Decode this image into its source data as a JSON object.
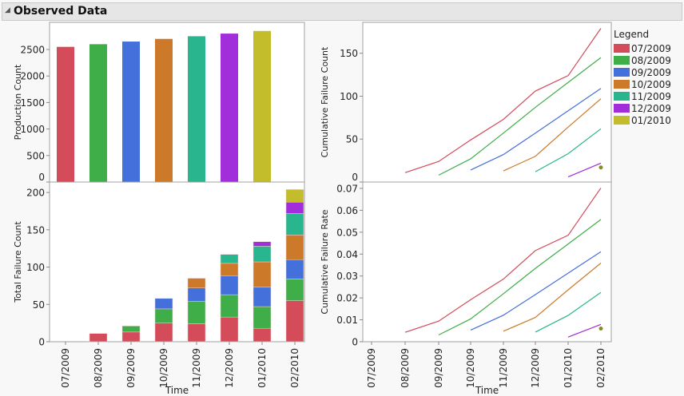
{
  "header": {
    "title": "Observed Data",
    "collapse_icon": "disclosure-triangle-icon"
  },
  "legend": {
    "title": "Legend"
  },
  "colors": [
    "#d44b5a",
    "#3fae49",
    "#4470dc",
    "#cc7a29",
    "#29b58e",
    "#a22ddb",
    "#c3bd2b"
  ],
  "chart_data": [
    {
      "type": "bar",
      "ylabel": "Production Count",
      "ylim": [
        0,
        3012
      ],
      "yticks": [
        0,
        500,
        1000,
        1500,
        2000,
        2500
      ],
      "categories": [
        "07/2009",
        "08/2009",
        "09/2009",
        "10/2009",
        "11/2009",
        "12/2009",
        "01/2010"
      ],
      "values": [
        2550,
        2600,
        2650,
        2700,
        2750,
        2800,
        2850
      ]
    },
    {
      "type": "bar",
      "stacked": true,
      "xlabel": "Time",
      "ylabel": "Total Failure Count",
      "ylim": [
        0,
        214
      ],
      "yticks": [
        0,
        50,
        100,
        150,
        200
      ],
      "categories": [
        "07/2009",
        "08/2009",
        "09/2009",
        "10/2009",
        "11/2009",
        "12/2009",
        "01/2010",
        "02/2010"
      ],
      "series": [
        {
          "name": "07/2009",
          "values": [
            0,
            11,
            13,
            25,
            24,
            33,
            18,
            55
          ]
        },
        {
          "name": "08/2009",
          "values": [
            0,
            0,
            8,
            19,
            30,
            30,
            29,
            29
          ]
        },
        {
          "name": "09/2009",
          "values": [
            0,
            0,
            0,
            14,
            18,
            25,
            26,
            26
          ]
        },
        {
          "name": "10/2009",
          "values": [
            0,
            0,
            0,
            0,
            13,
            17,
            34,
            33
          ]
        },
        {
          "name": "11/2009",
          "values": [
            0,
            0,
            0,
            0,
            0,
            12,
            21,
            29
          ]
        },
        {
          "name": "12/2009",
          "values": [
            0,
            0,
            0,
            0,
            0,
            0,
            6,
            15
          ]
        },
        {
          "name": "01/2010",
          "values": [
            0,
            0,
            0,
            0,
            0,
            0,
            0,
            17
          ]
        }
      ]
    },
    {
      "type": "line",
      "ylabel": "Cumulative Failure Count",
      "ylim": [
        0,
        186
      ],
      "yticks": [
        0,
        50,
        100,
        150
      ],
      "legend": "right",
      "categories": [
        "07/2009",
        "08/2009",
        "09/2009",
        "10/2009",
        "11/2009",
        "12/2009",
        "01/2010",
        "02/2010"
      ],
      "series": [
        {
          "name": "07/2009",
          "values": [
            null,
            11,
            24,
            49,
            73,
            106,
            124,
            179
          ]
        },
        {
          "name": "08/2009",
          "values": [
            null,
            null,
            8,
            27,
            57,
            87,
            116,
            145
          ]
        },
        {
          "name": "09/2009",
          "values": [
            null,
            null,
            null,
            14,
            32,
            57,
            83,
            109
          ]
        },
        {
          "name": "10/2009",
          "values": [
            null,
            null,
            null,
            null,
            13,
            30,
            64,
            97
          ]
        },
        {
          "name": "11/2009",
          "values": [
            null,
            null,
            null,
            null,
            null,
            12,
            33,
            62
          ]
        },
        {
          "name": "12/2009",
          "values": [
            null,
            null,
            null,
            null,
            null,
            null,
            6,
            22
          ]
        },
        {
          "name": "01/2010",
          "values": [
            null,
            null,
            null,
            null,
            null,
            null,
            null,
            17
          ]
        }
      ]
    },
    {
      "type": "line",
      "xlabel": "Time",
      "ylabel": "Cumulative Failure Rate",
      "ylim": [
        0,
        0.0729
      ],
      "yticks": [
        0,
        0.01,
        0.02,
        0.03,
        0.04,
        0.05,
        0.06,
        0.07
      ],
      "categories": [
        "07/2009",
        "08/2009",
        "09/2009",
        "10/2009",
        "11/2009",
        "12/2009",
        "01/2010",
        "02/2010"
      ],
      "series": [
        {
          "name": "07/2009",
          "values": [
            null,
            0.0043,
            0.0094,
            0.0192,
            0.0286,
            0.0416,
            0.0486,
            0.0702
          ]
        },
        {
          "name": "08/2009",
          "values": [
            null,
            null,
            0.0031,
            0.0104,
            0.0219,
            0.0335,
            0.0446,
            0.0558
          ]
        },
        {
          "name": "09/2009",
          "values": [
            null,
            null,
            null,
            0.0053,
            0.0121,
            0.0215,
            0.0313,
            0.0411
          ]
        },
        {
          "name": "10/2009",
          "values": [
            null,
            null,
            null,
            null,
            0.0048,
            0.0111,
            0.0237,
            0.0359
          ]
        },
        {
          "name": "11/2009",
          "values": [
            null,
            null,
            null,
            null,
            null,
            0.0044,
            0.012,
            0.0225
          ]
        },
        {
          "name": "12/2009",
          "values": [
            null,
            null,
            null,
            null,
            null,
            null,
            0.0021,
            0.0079
          ]
        },
        {
          "name": "01/2010",
          "values": [
            null,
            null,
            null,
            null,
            null,
            null,
            null,
            0.006
          ]
        }
      ]
    }
  ]
}
